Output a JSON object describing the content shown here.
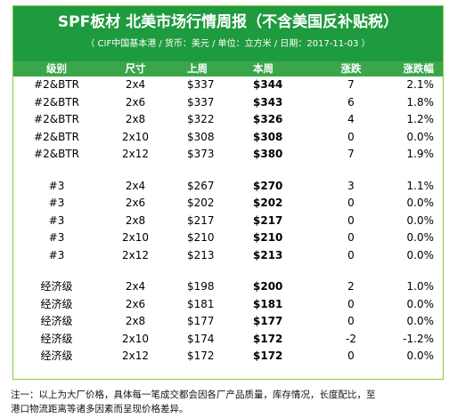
{
  "title": "SPF板材 北美市场行情周报（不含美国反补贴税）",
  "subtitle": "（ CIF中国基本港 / 货币：美元 / 单位：立方米 / 日期：2017-11-03 ）",
  "columns": {
    "grade": "级别",
    "size": "尺寸",
    "last_week": "上周",
    "this_week": "本周",
    "change": "涨跌",
    "change_pct": "涨跌幅"
  },
  "groups": [
    {
      "rows": [
        {
          "grade": "#2&BTR",
          "size": "2x4",
          "last": "$337",
          "this": "$344",
          "chg": "7",
          "pct": "2.1%"
        },
        {
          "grade": "#2&BTR",
          "size": "2x6",
          "last": "$337",
          "this": "$343",
          "chg": "6",
          "pct": "1.8%"
        },
        {
          "grade": "#2&BTR",
          "size": "2x8",
          "last": "$322",
          "this": "$326",
          "chg": "4",
          "pct": "1.2%"
        },
        {
          "grade": "#2&BTR",
          "size": "2x10",
          "last": "$308",
          "this": "$308",
          "chg": "0",
          "pct": "0.0%"
        },
        {
          "grade": "#2&BTR",
          "size": "2x12",
          "last": "$373",
          "this": "$380",
          "chg": "7",
          "pct": "1.9%"
        }
      ]
    },
    {
      "rows": [
        {
          "grade": "#3",
          "size": "2x4",
          "last": "$267",
          "this": "$270",
          "chg": "3",
          "pct": "1.1%"
        },
        {
          "grade": "#3",
          "size": "2x6",
          "last": "$202",
          "this": "$202",
          "chg": "0",
          "pct": "0.0%"
        },
        {
          "grade": "#3",
          "size": "2x8",
          "last": "$217",
          "this": "$217",
          "chg": "0",
          "pct": "0.0%"
        },
        {
          "grade": "#3",
          "size": "2x10",
          "last": "$210",
          "this": "$210",
          "chg": "0",
          "pct": "0.0%"
        },
        {
          "grade": "#3",
          "size": "2x12",
          "last": "$213",
          "this": "$213",
          "chg": "0",
          "pct": "0.0%"
        }
      ]
    },
    {
      "rows": [
        {
          "grade": "经济级",
          "size": "2x4",
          "last": "$198",
          "this": "$200",
          "chg": "2",
          "pct": "1.0%"
        },
        {
          "grade": "经济级",
          "size": "2x6",
          "last": "$181",
          "this": "$181",
          "chg": "0",
          "pct": "0.0%"
        },
        {
          "grade": "经济级",
          "size": "2x8",
          "last": "$177",
          "this": "$177",
          "chg": "0",
          "pct": "0.0%"
        },
        {
          "grade": "经济级",
          "size": "2x10",
          "last": "$174",
          "this": "$172",
          "chg": "-2",
          "pct": "-1.2%"
        },
        {
          "grade": "经济级",
          "size": "2x12",
          "last": "$172",
          "this": "$172",
          "chg": "0",
          "pct": "0.0%"
        }
      ]
    }
  ],
  "note": {
    "line1": "注一：以上为大厂价格，具体每一笔成交都会因各厂产品质量，库存情况，长度配比，至",
    "line2": "港口物流距离等诸多因素而呈现价格差异。"
  }
}
